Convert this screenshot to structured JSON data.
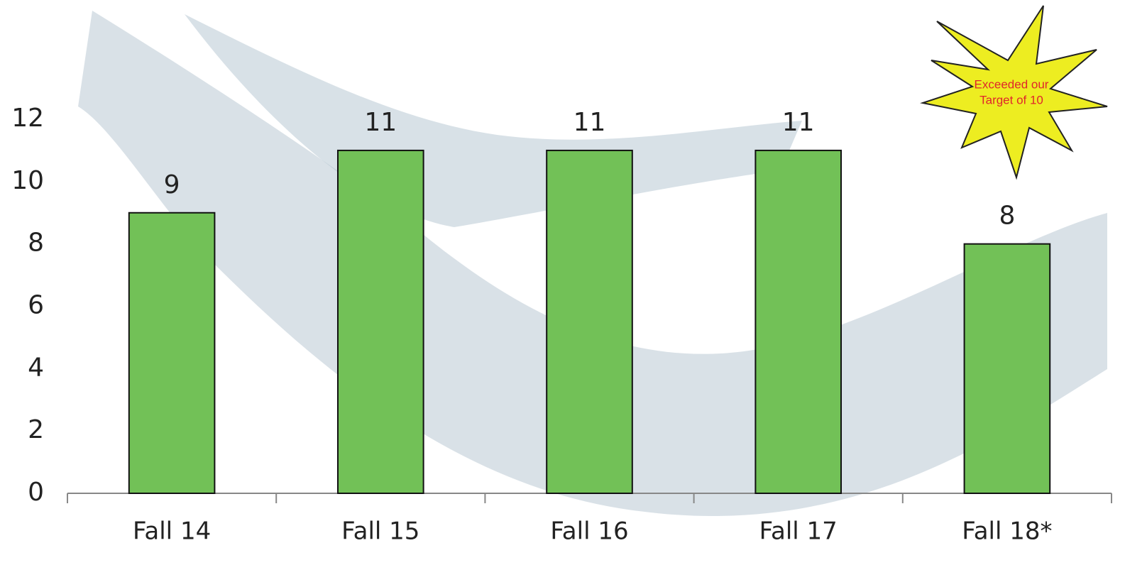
{
  "chart_data": {
    "type": "bar",
    "categories": [
      "Fall 14",
      "Fall 15",
      "Fall 16",
      "Fall 17",
      "Fall 18*"
    ],
    "values": [
      9,
      11,
      11,
      11,
      8
    ],
    "color": "#72c157",
    "ylim": [
      0,
      12
    ],
    "yticks": [
      0,
      2,
      4,
      6,
      8,
      10,
      12
    ],
    "grid": false,
    "annotation": [
      "Exceeded our",
      "Target of 10"
    ]
  }
}
